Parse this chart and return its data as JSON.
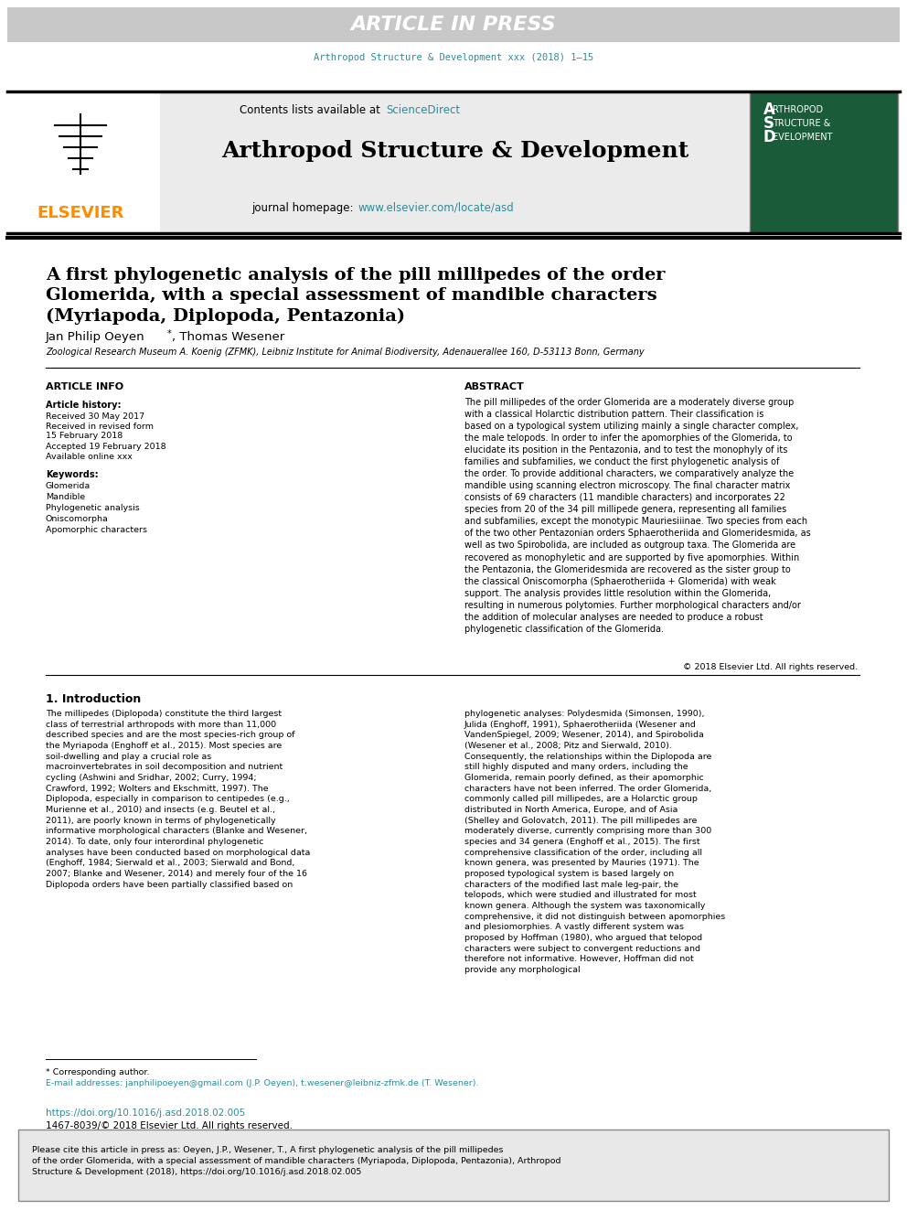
{
  "article_in_press_bg": "#c8c8c8",
  "article_in_press_text": "ARTICLE IN PRESS",
  "header_journal_ref": "Arthropod Structure & Development xxx (2018) 1–15",
  "journal_name": "Arthropod Structure & Development",
  "contents_text": "Contents lists available at",
  "sciencedirect_text": "ScienceDirect",
  "journal_homepage_text": "journal homepage:",
  "journal_url": "www.elsevier.com/locate/asd",
  "elsevier_text": "ELSEVIER",
  "elsevier_color": "#ff8c00",
  "teal_color": "#2e8b9a",
  "title_main": "A first phylogenetic analysis of the pill millipedes of the order\nGlomerida, with a special assessment of mandible characters\n(Myriapoda, Diplopoda, Pentazonia)",
  "authors": "Jan Philip Oeyen*, Thomas Wesener",
  "affiliation": "Zoological Research Museum A. Koenig (ZFMK), Leibniz Institute for Animal Biodiversity, Adenauerallee 160, D-53113 Bonn, Germany",
  "article_info_title": "ARTICLE INFO",
  "article_history_title": "Article history:",
  "received_date": "Received 30 May 2017",
  "received_revised1": "Received in revised form",
  "received_revised2": "15 February 2018",
  "accepted_date": "Accepted 19 February 2018",
  "available_online": "Available online xxx",
  "keywords_title": "Keywords:",
  "keywords": [
    "Glomerida",
    "Mandible",
    "Phylogenetic analysis",
    "Oniscomorpha",
    "Apomorphic characters"
  ],
  "abstract_title": "ABSTRACT",
  "abstract_text": "The pill millipedes of the order Glomerida are a moderately diverse group with a classical Holarctic distribution pattern. Their classification is based on a typological system utilizing mainly a single character complex, the male telopods. In order to infer the apomorphies of the Glomerida, to elucidate its position in the Pentazonia, and to test the monophyly of its families and subfamilies, we conduct the first phylogenetic analysis of the order. To provide additional characters, we comparatively analyze the mandible using scanning electron microscopy. The final character matrix consists of 69 characters (11 mandible characters) and incorporates 22 species from 20 of the 34 pill millipede genera, representing all families and subfamilies, except the monotypic Mauriesiiinae. Two species from each of the two other Pentazonian orders Sphaerotheriida and Glomeridesmida, as well as two Spirobolida, are included as outgroup taxa. The Glomerida are recovered as monophyletic and are supported by five apomorphies. Within the Pentazonia, the Glomeridesmida are recovered as the sister group to the classical Oniscomorpha (Sphaerotheriida + Glomerida) with weak support. The analysis provides little resolution within the Glomerida, resulting in numerous polytomies. Further morphological characters and/or the addition of molecular analyses are needed to produce a robust phylogenetic classification of the Glomerida.",
  "copyright_text": "© 2018 Elsevier Ltd. All rights reserved.",
  "intro_title": "1. Introduction",
  "intro_col1": "The millipedes (Diplopoda) constitute the third largest class of terrestrial arthropods with more than 11,000 described species and are the most species-rich group of the Myriapoda (Enghoff et al., 2015). Most species are soil-dwelling and play a crucial role as macroinvertebrates in soil decomposition and nutrient cycling (Ashwini and Sridhar, 2002; Curry, 1994; Crawford, 1992; Wolters and Ekschmitt, 1997).\n   The Diplopoda, especially in comparison to centipedes (e.g., Murienne et al., 2010) and insects (e.g. Beutel et al., 2011), are poorly known in terms of phylogenetically informative morphological characters (Blanke and Wesener, 2014). To date, only four interordinal phylogenetic analyses have been conducted based on morphological data (Enghoff, 1984; Sierwald et al., 2003; Sierwald and Bond, 2007; Blanke and Wesener, 2014) and merely four of the 16 Diplopoda orders have been partially classified based on",
  "intro_col2": "phylogenetic analyses: Polydesmida (Simonsen, 1990), Julida (Enghoff, 1991), Sphaerotheriida (Wesener and VandenSpiegel, 2009; Wesener, 2014), and Spirobolida (Wesener et al., 2008; Pitz and Sierwald, 2010). Consequently, the relationships within the Diplopoda are still highly disputed and many orders, including the Glomerida, remain poorly defined, as their apomorphic characters have not been inferred.\n   The order Glomerida, commonly called pill millipedes, are a Holarctic group distributed in North America, Europe, and of Asia (Shelley and Golovatch, 2011). The pill millipedes are moderately diverse, currently comprising more than 300 species and 34 genera (Enghoff et al., 2015). The first comprehensive classification of the order, including all known genera, was presented by Mauries (1971). The proposed typological system is based largely on characters of the modified last male leg-pair, the telopods, which were studied and illustrated for most known genera. Although the system was taxonomically comprehensive, it did not distinguish between apomorphies and plesiomorphies. A vastly different system was proposed by Hoffman (1980), who argued that telopod characters were subject to convergent reductions and therefore not informative. However, Hoffman did not provide any morphological",
  "footnote_corresponding": "* Corresponding author.",
  "footnote_emails": "E-mail addresses: janphilipoeyen@gmail.com (J.P. Oeyen), t.wesener@leibniz-zfmk.de (T. Wesener).",
  "doi_text": "https://doi.org/10.1016/j.asd.2018.02.005",
  "issn_text": "1467-8039/© 2018 Elsevier Ltd. All rights reserved.",
  "cite_box_text": "Please cite this article in press as: Oeyen, J.P., Wesener, T., A first phylogenetic analysis of the pill millipedes of the order Glomerida, with a special assessment of mandible characters (Myriapoda, Diplopoda, Pentazonia), Arthropod Structure & Development (2018), https://doi.org/10.1016/j.asd.2018.02.005",
  "background_color": "#ffffff",
  "text_color": "#000000",
  "light_gray": "#e8e8e8",
  "dark_gray": "#3a3a3a",
  "line_color": "#000000"
}
